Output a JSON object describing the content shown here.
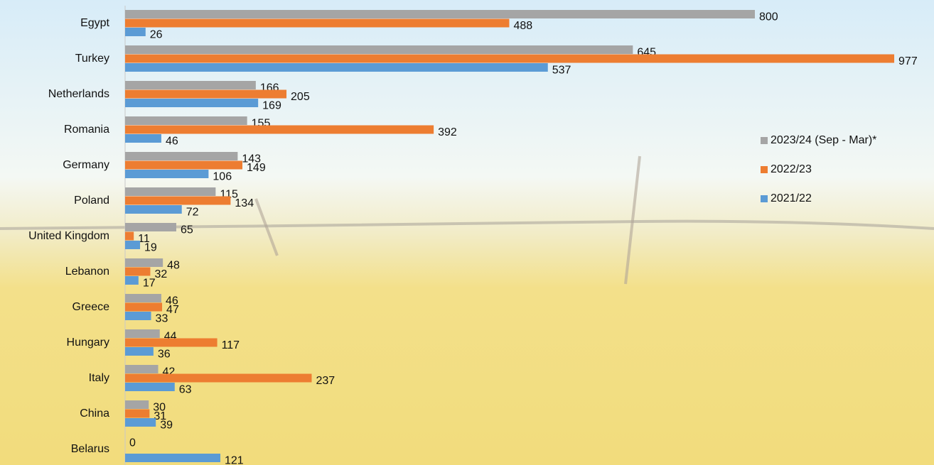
{
  "chart_data": {
    "type": "hbar",
    "categories": [
      "Egypt",
      "Turkey",
      "Netherlands",
      "Romania",
      "Germany",
      "Poland",
      "United Kingdom",
      "Lebanon",
      "Greece",
      "Hungary",
      "Italy",
      "China",
      "Belarus"
    ],
    "series": [
      {
        "name": "2023/24 (Sep - Mar)*",
        "color": "#a5a5a5",
        "values": [
          800,
          645,
          166,
          155,
          143,
          115,
          65,
          48,
          46,
          44,
          42,
          30,
          0
        ]
      },
      {
        "name": "2022/23",
        "color": "#ed7d31",
        "values": [
          488,
          977,
          205,
          392,
          149,
          134,
          11,
          32,
          47,
          117,
          237,
          31,
          null
        ]
      },
      {
        "name": "2021/22",
        "color": "#5b9bd5",
        "values": [
          26,
          537,
          169,
          46,
          106,
          72,
          19,
          17,
          33,
          36,
          63,
          39,
          121
        ]
      }
    ],
    "xlim": [
      0,
      1000
    ],
    "legend": "right"
  }
}
